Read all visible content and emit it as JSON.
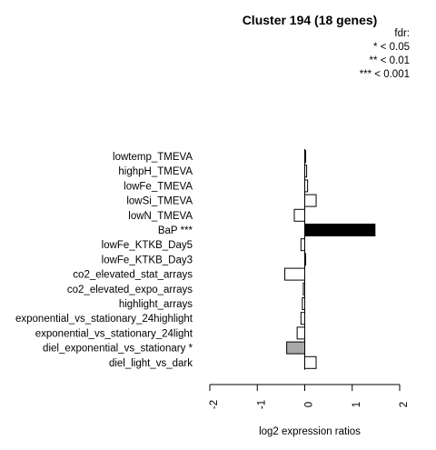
{
  "chart_data": {
    "type": "bar",
    "orientation": "horizontal",
    "title": "Cluster 194 (18 genes)",
    "xlabel": "log2 expression ratios",
    "ylabel": "",
    "xlim": [
      -2,
      2
    ],
    "xticks": [
      "-2",
      "-1",
      "0",
      "1",
      "2"
    ],
    "grid": false,
    "legend": {
      "placement": "top-right",
      "title": "fdr:",
      "entries": [
        "* < 0.05",
        "** < 0.01",
        "*** < 0.001"
      ]
    },
    "categories": [
      "lowtemp_TMEVA",
      "highpH_TMEVA",
      "lowFe_TMEVA",
      "lowSi_TMEVA",
      "lowN_TMEVA",
      "BaP ***",
      "lowFe_KTKB_Day5",
      "lowFe_KTKB_Day3",
      "co2_elevated_stat_arrays",
      "co2_elevated_expo_arrays",
      "highlight_arrays",
      "exponential_vs_stationary_24highlight",
      "exponential_vs_stationary_24light",
      "diel_exponential_vs_stationary *",
      "diel_light_vs_dark"
    ],
    "values": [
      0.02,
      0.04,
      0.06,
      0.24,
      -0.22,
      1.48,
      -0.08,
      0.02,
      -0.42,
      -0.03,
      -0.05,
      -0.08,
      -0.16,
      -0.38,
      0.24
    ],
    "bar_colors": [
      "#ffffff",
      "#ffffff",
      "#ffffff",
      "#ffffff",
      "#ffffff",
      "#000000",
      "#ffffff",
      "#ffffff",
      "#ffffff",
      "#ffffff",
      "#ffffff",
      "#ffffff",
      "#ffffff",
      "#a9a9a9",
      "#ffffff"
    ]
  }
}
